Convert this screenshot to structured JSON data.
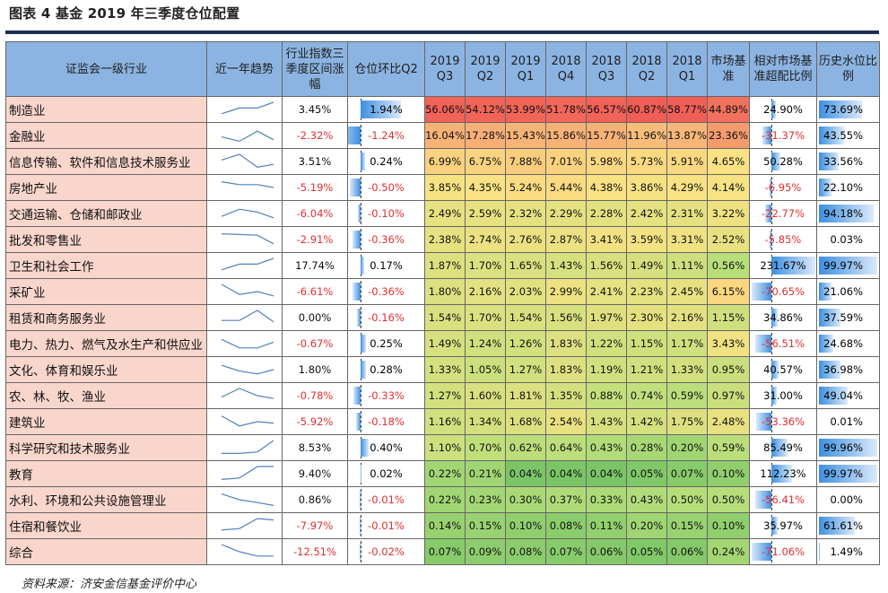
{
  "title": "图表 4 基金 2019 年三季度仓位配置",
  "source": "资料来源：济安金信基金评价中心",
  "headers": {
    "industry": "证监会一级行业",
    "trend": "近一年趋势",
    "index_change": "行业指数三季度区间涨幅",
    "position_change": "仓位环比Q2",
    "q_2019q3": "2019 Q3",
    "q_2019q2": "2019 Q2",
    "q_2019q1": "2019 Q1",
    "q_2018q4": "2018 Q4",
    "q_2018q3": "2018 Q3",
    "q_2018q2": "2018 Q2",
    "q_2018q1": "2018 Q1",
    "market": "市场基准",
    "relative": "相对市场基准超配比例",
    "history": "历史水位比例"
  },
  "rows": [
    {
      "name": "制造业",
      "trend": [
        0.2,
        0.6,
        0.6,
        1.0
      ],
      "index_change": "3.45%",
      "position_change": "1.94%",
      "q": [
        "56.06%",
        "54.12%",
        "53.99%",
        "51.78%",
        "56.57%",
        "60.87%",
        "58.77%"
      ],
      "market": "44.89%",
      "relative": "24.90%",
      "history": "73.69%"
    },
    {
      "name": "金融业",
      "trend": [
        0.4,
        0.1,
        0.8,
        0.2
      ],
      "index_change": "-2.32%",
      "position_change": "-1.24%",
      "q": [
        "16.04%",
        "17.28%",
        "15.43%",
        "15.86%",
        "15.77%",
        "11.96%",
        "13.87%"
      ],
      "market": "23.36%",
      "relative": "-31.37%",
      "history": "43.55%"
    },
    {
      "name": "信息传输、软件和信息技术服务业",
      "trend": [
        0.6,
        1.0,
        0.1,
        0.3
      ],
      "index_change": "3.51%",
      "position_change": "0.24%",
      "q": [
        "6.99%",
        "6.75%",
        "7.88%",
        "7.01%",
        "5.98%",
        "5.73%",
        "5.91%"
      ],
      "market": "4.65%",
      "relative": "50.28%",
      "history": "33.56%"
    },
    {
      "name": "房地产业",
      "trend": [
        0.9,
        0.7,
        0.7,
        0.5
      ],
      "index_change": "-5.19%",
      "position_change": "-0.50%",
      "q": [
        "3.85%",
        "4.35%",
        "5.24%",
        "5.44%",
        "4.38%",
        "3.86%",
        "4.29%"
      ],
      "market": "4.14%",
      "relative": "-6.95%",
      "history": "22.10%"
    },
    {
      "name": "交通运输、仓储和邮政业",
      "trend": [
        0.3,
        0.8,
        0.6,
        0.2
      ],
      "index_change": "-6.04%",
      "position_change": "-0.10%",
      "q": [
        "2.49%",
        "2.59%",
        "2.32%",
        "2.29%",
        "2.28%",
        "2.42%",
        "2.31%"
      ],
      "market": "3.22%",
      "relative": "-22.77%",
      "history": "94.18%"
    },
    {
      "name": "批发和零售业",
      "trend": [
        0.9,
        0.85,
        0.8,
        0.2
      ],
      "index_change": "-2.91%",
      "position_change": "-0.36%",
      "q": [
        "2.38%",
        "2.74%",
        "2.76%",
        "2.87%",
        "3.41%",
        "3.59%",
        "3.31%"
      ],
      "market": "2.52%",
      "relative": "-5.85%",
      "history": "0.03%"
    },
    {
      "name": "卫生和社会工作",
      "trend": [
        0.2,
        0.6,
        0.6,
        1.0
      ],
      "index_change": "17.74%",
      "position_change": "0.17%",
      "q": [
        "1.87%",
        "1.70%",
        "1.65%",
        "1.43%",
        "1.56%",
        "1.49%",
        "1.11%"
      ],
      "market": "0.56%",
      "relative": "231.67%",
      "history": "99.97%"
    },
    {
      "name": "采矿业",
      "trend": [
        1.0,
        0.3,
        0.5,
        0.2
      ],
      "index_change": "-6.61%",
      "position_change": "-0.36%",
      "q": [
        "1.80%",
        "2.16%",
        "2.03%",
        "2.99%",
        "2.41%",
        "2.23%",
        "2.45%"
      ],
      "market": "6.15%",
      "relative": "-70.65%",
      "history": "21.06%"
    },
    {
      "name": "租赁和商务服务业",
      "trend": [
        0.3,
        0.3,
        1.0,
        0.2
      ],
      "index_change": "0.00%",
      "position_change": "-0.16%",
      "q": [
        "1.54%",
        "1.70%",
        "1.54%",
        "1.56%",
        "1.97%",
        "2.30%",
        "2.16%"
      ],
      "market": "1.15%",
      "relative": "34.86%",
      "history": "37.59%"
    },
    {
      "name": "电力、热力、燃气及水生产和供应业",
      "trend": [
        0.8,
        0.2,
        0.2,
        0.6
      ],
      "index_change": "-0.67%",
      "position_change": "0.25%",
      "q": [
        "1.49%",
        "1.24%",
        "1.26%",
        "1.83%",
        "1.22%",
        "1.15%",
        "1.17%"
      ],
      "market": "3.43%",
      "relative": "-56.51%",
      "history": "24.68%"
    },
    {
      "name": "文化、体育和娱乐业",
      "trend": [
        0.8,
        0.4,
        0.2,
        0.5
      ],
      "index_change": "1.80%",
      "position_change": "0.28%",
      "q": [
        "1.33%",
        "1.05%",
        "1.27%",
        "1.83%",
        "1.19%",
        "1.21%",
        "1.33%"
      ],
      "market": "0.95%",
      "relative": "40.57%",
      "history": "36.98%"
    },
    {
      "name": "农、林、牧、渔业",
      "trend": [
        0.4,
        1.0,
        0.5,
        0.3
      ],
      "index_change": "-0.78%",
      "position_change": "-0.33%",
      "q": [
        "1.27%",
        "1.60%",
        "1.81%",
        "1.35%",
        "0.88%",
        "0.74%",
        "0.59%"
      ],
      "market": "0.97%",
      "relative": "31.00%",
      "history": "49.04%"
    },
    {
      "name": "建筑业",
      "trend": [
        0.9,
        0.2,
        0.5,
        0.4
      ],
      "index_change": "-5.92%",
      "position_change": "-0.18%",
      "q": [
        "1.16%",
        "1.34%",
        "1.68%",
        "2.54%",
        "1.43%",
        "1.42%",
        "1.75%"
      ],
      "market": "2.48%",
      "relative": "-53.36%",
      "history": "0.01%"
    },
    {
      "name": "科学研究和技术服务业",
      "trend": [
        0.1,
        0.1,
        0.2,
        1.0
      ],
      "index_change": "8.53%",
      "position_change": "0.40%",
      "q": [
        "1.10%",
        "0.70%",
        "0.62%",
        "0.64%",
        "0.43%",
        "0.28%",
        "0.20%"
      ],
      "market": "0.59%",
      "relative": "85.49%",
      "history": "99.96%"
    },
    {
      "name": "教育",
      "trend": [
        0.1,
        0.2,
        1.0,
        1.0
      ],
      "index_change": "9.40%",
      "position_change": "0.02%",
      "q": [
        "0.22%",
        "0.21%",
        "0.04%",
        "0.04%",
        "0.04%",
        "0.05%",
        "0.07%"
      ],
      "market": "0.10%",
      "relative": "112.23%",
      "history": "99.97%"
    },
    {
      "name": "水利、环境和公共设施管理业",
      "trend": [
        0.9,
        0.5,
        0.3,
        0.1
      ],
      "index_change": "0.86%",
      "position_change": "-0.01%",
      "q": [
        "0.22%",
        "0.23%",
        "0.30%",
        "0.37%",
        "0.33%",
        "0.43%",
        "0.50%"
      ],
      "market": "0.50%",
      "relative": "-56.41%",
      "history": "0.00%"
    },
    {
      "name": "住宿和餐饮业",
      "trend": [
        0.2,
        0.3,
        1.0,
        0.9
      ],
      "index_change": "-7.97%",
      "position_change": "-0.01%",
      "q": [
        "0.14%",
        "0.15%",
        "0.10%",
        "0.08%",
        "0.11%",
        "0.20%",
        "0.15%"
      ],
      "market": "0.10%",
      "relative": "35.97%",
      "history": "61.61%"
    },
    {
      "name": "综合",
      "trend": [
        1.0,
        0.5,
        0.2,
        0.2
      ],
      "index_change": "-12.51%",
      "position_change": "-0.02%",
      "q": [
        "0.07%",
        "0.09%",
        "0.08%",
        "0.07%",
        "0.06%",
        "0.05%",
        "0.06%"
      ],
      "market": "0.24%",
      "relative": "-71.06%",
      "history": "1.49%"
    }
  ]
}
